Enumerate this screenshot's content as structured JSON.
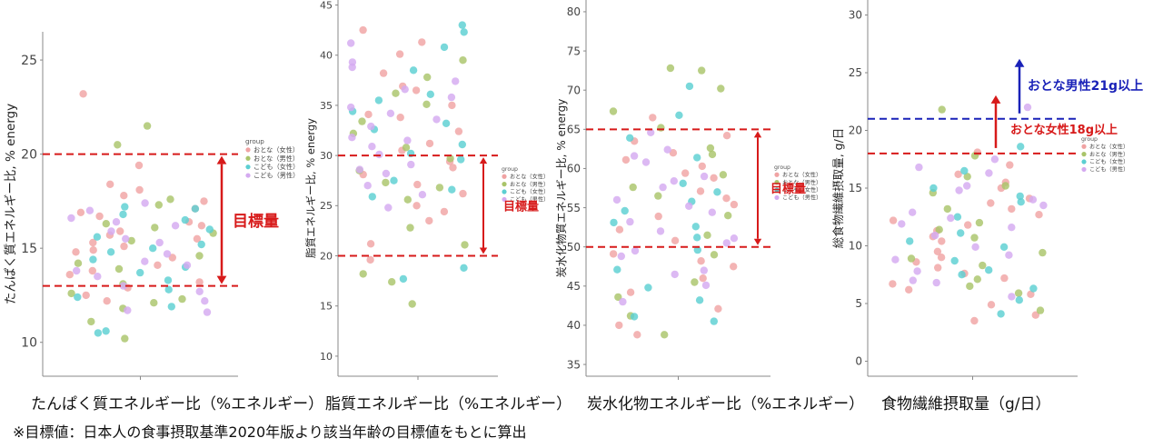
{
  "colors": {
    "adult_female": "#f0a3a3",
    "adult_male": "#a9c46a",
    "child_female": "#5ccfd2",
    "child_male": "#d4aaf0",
    "target_line": "#d71a1a",
    "target_male_line": "#1a22b8",
    "axis": "#888888"
  },
  "legend": {
    "title": "group",
    "items": [
      "おとな（女性）",
      "おとな（男性）",
      "こども（女性）",
      "こども（男性）"
    ]
  },
  "captions": [
    "たんぱく質エネルギー比（%エネルギー）",
    "脂質エネルギー比（%エネルギー）",
    "炭水化物エネルギー比（%エネルギー）",
    "食物繊維摂取量（g/日）"
  ],
  "footnote": "※目標値：日本人の食事摂取基準2020年版より該当年齢の目標値をもとに算出",
  "chart_data": [
    {
      "type": "scatter",
      "title": "",
      "ylabel": "たんぱく質エネルギー比, % energy",
      "xlabel": "",
      "ylim": [
        8.2,
        26.5
      ],
      "yticks": [
        10,
        15,
        20,
        25
      ],
      "grid": false,
      "legend_position": "right",
      "reference_lines": [
        13,
        20
      ],
      "target_range": [
        13,
        20
      ],
      "target_label": "目標量",
      "series": [
        {
          "name": "おとな（女性）",
          "values": [
            15.5,
            16.2,
            14.8,
            17.8,
            13.2,
            12.5,
            15.9,
            18.1,
            14.1,
            16.7,
            23.2,
            17.5,
            15.1,
            13.8,
            19.4,
            12.2,
            16.9,
            14.5,
            18.4,
            15.7,
            13.6,
            17.1,
            14.9,
            16.4,
            12.9,
            15.3
          ]
        },
        {
          "name": "おとな（男性）",
          "values": [
            21.5,
            20.5,
            17.6,
            16.1,
            14.2,
            11.1,
            10.2,
            12.6,
            15.8,
            13.9,
            17.3,
            12.1,
            14.6,
            16.3,
            11.8,
            15.4,
            13.1,
            12.3
          ]
        },
        {
          "name": "こども（女性）",
          "values": [
            17.2,
            16.8,
            15.6,
            14.4,
            13.3,
            12.4,
            10.5,
            11.9,
            16.5,
            15.2,
            17.1,
            14.0,
            12.8,
            15.0,
            13.7,
            16.0,
            10.6,
            14.8
          ]
        },
        {
          "name": "こども（男性）",
          "values": [
            17.0,
            16.4,
            15.3,
            14.7,
            13.5,
            12.7,
            11.6,
            15.9,
            14.3,
            13.0,
            16.6,
            12.2,
            15.5,
            14.1,
            17.4,
            11.7,
            13.8,
            16.2
          ]
        }
      ]
    },
    {
      "type": "scatter",
      "title": "",
      "ylabel": "脂質エネルギー比, % energy",
      "xlabel": "",
      "ylim": [
        8,
        45.5
      ],
      "yticks": [
        10,
        15,
        20,
        25,
        30,
        35,
        40,
        45
      ],
      "grid": false,
      "legend_position": "right",
      "reference_lines": [
        20,
        30
      ],
      "target_range": [
        20,
        30
      ],
      "target_label": "目標量",
      "series": [
        {
          "name": "おとな（女性）",
          "values": [
            42.5,
            40.1,
            38.2,
            36.5,
            35.0,
            33.8,
            31.2,
            30.5,
            29.4,
            28.8,
            27.1,
            26.2,
            25.0,
            23.5,
            21.2,
            19.6,
            34.1,
            32.4,
            28.1,
            36.9,
            41.3,
            24.4
          ]
        },
        {
          "name": "おとな（男性）",
          "values": [
            39.5,
            37.8,
            35.1,
            33.4,
            30.8,
            28.5,
            27.3,
            25.6,
            22.8,
            21.1,
            18.2,
            17.4,
            15.2,
            26.8,
            32.2,
            36.2,
            29.7
          ]
        },
        {
          "name": "こども（女性）",
          "values": [
            43.0,
            42.3,
            40.8,
            38.5,
            36.1,
            34.4,
            32.6,
            31.1,
            29.6,
            27.5,
            25.9,
            18.8,
            17.7,
            33.2,
            30.2,
            26.6,
            35.5
          ]
        },
        {
          "name": "こども（男性）",
          "values": [
            41.2,
            39.3,
            37.4,
            35.8,
            34.2,
            32.9,
            31.5,
            30.1,
            29.1,
            28.2,
            27.0,
            24.8,
            33.6,
            36.6,
            38.8,
            30.9,
            26.1,
            31.8,
            28.6,
            34.8
          ]
        }
      ]
    },
    {
      "type": "scatter",
      "title": "",
      "ylabel": "炭水化物質エネルギー比, % energy",
      "xlabel": "",
      "ylim": [
        33.5,
        81.5
      ],
      "yticks": [
        35,
        40,
        45,
        50,
        55,
        60,
        65,
        70,
        75,
        80
      ],
      "grid": false,
      "legend_position": "right",
      "reference_lines": [
        50,
        65
      ],
      "target_range": [
        50,
        65
      ],
      "target_label": "目標量",
      "series": [
        {
          "name": "おとな（女性）",
          "values": [
            66.5,
            64.2,
            62.0,
            60.3,
            58.8,
            57.1,
            55.4,
            53.9,
            52.2,
            50.8,
            49.1,
            47.5,
            46.0,
            44.2,
            42.1,
            40.0,
            38.8,
            61.1,
            56.2,
            59.4,
            63.5,
            48.2
          ]
        },
        {
          "name": "おとな（男性）",
          "values": [
            72.5,
            72.8,
            70.2,
            67.3,
            65.2,
            61.8,
            59.2,
            56.5,
            54.0,
            51.5,
            49.0,
            45.5,
            43.6,
            41.2,
            38.8,
            57.6,
            62.6
          ]
        },
        {
          "name": "こども（女性）",
          "values": [
            70.5,
            66.8,
            63.9,
            61.4,
            58.1,
            55.8,
            53.1,
            51.2,
            49.6,
            47.1,
            44.8,
            43.2,
            41.1,
            40.5,
            54.6,
            57.0,
            52.6
          ]
        },
        {
          "name": "こども（男性）",
          "values": [
            64.6,
            62.4,
            60.8,
            59.0,
            57.6,
            56.0,
            54.4,
            53.2,
            52.0,
            50.5,
            48.8,
            47.0,
            46.5,
            55.2,
            58.4,
            51.1,
            61.6,
            43.0,
            45.1,
            49.5
          ]
        }
      ]
    },
    {
      "type": "scatter",
      "title": "",
      "ylabel": "総食物繊維摂取量, g/日",
      "xlabel": "",
      "ylim": [
        -1.3,
        31.3
      ],
      "yticks": [
        0,
        5,
        10,
        15,
        20,
        25,
        30
      ],
      "grid": false,
      "legend_position": "right",
      "reference_lines": [
        18,
        21
      ],
      "target_label_female": "おとな女性18g以上",
      "target_label_male": "おとな男性21g以上",
      "series": [
        {
          "name": "おとな（女性）",
          "values": [
            18.1,
            16.2,
            15.0,
            14.1,
            13.2,
            12.2,
            11.3,
            10.4,
            9.5,
            8.6,
            7.6,
            6.7,
            5.8,
            4.9,
            3.5,
            12.7,
            10.8,
            9.0,
            7.2,
            15.5,
            17.0,
            13.7,
            11.8,
            8.1,
            6.2,
            4.0
          ]
        },
        {
          "name": "おとな（男性）",
          "values": [
            21.8,
            17.8,
            16.0,
            14.6,
            13.2,
            12.0,
            10.7,
            9.4,
            8.3,
            7.1,
            5.9,
            4.4,
            15.2,
            11.4,
            8.9,
            6.5
          ]
        },
        {
          "name": "こども（女性）",
          "values": [
            18.6,
            16.5,
            15.0,
            13.8,
            12.5,
            11.1,
            9.9,
            8.7,
            7.5,
            6.3,
            5.3,
            4.1,
            14.3,
            10.4,
            7.9
          ]
        },
        {
          "name": "こども（男性）",
          "values": [
            22.0,
            17.5,
            16.3,
            15.2,
            14.0,
            12.9,
            11.9,
            10.9,
            9.9,
            8.8,
            7.8,
            6.8,
            5.6,
            13.5,
            11.6,
            9.2,
            16.8,
            14.8,
            12.4,
            7.0
          ]
        }
      ]
    }
  ]
}
